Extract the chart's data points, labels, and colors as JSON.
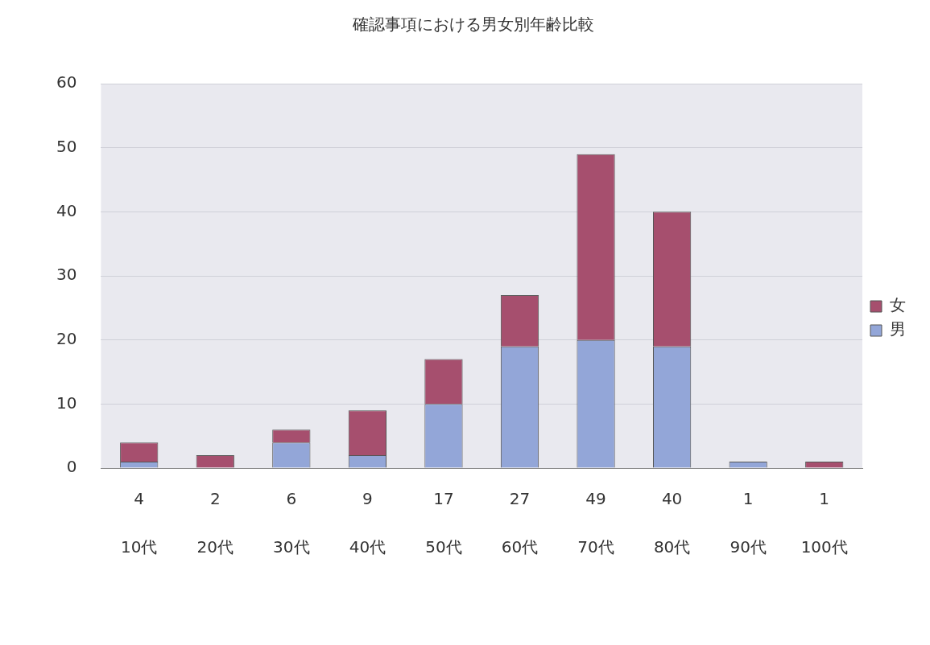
{
  "chart_data": {
    "type": "bar",
    "title": "確認事項における男女別年齢比較",
    "categories": [
      "10代",
      "20代",
      "30代",
      "40代",
      "50代",
      "60代",
      "70代",
      "80代",
      "90代",
      "100代"
    ],
    "stacked": true,
    "series": [
      {
        "name": "男",
        "color": "#93a6d8",
        "values": [
          1,
          0,
          4,
          2,
          10,
          19,
          20,
          19,
          1,
          0
        ]
      },
      {
        "name": "女",
        "color": "#a64f6e",
        "values": [
          3,
          2,
          2,
          7,
          7,
          8,
          29,
          21,
          0,
          1
        ]
      }
    ],
    "totals": [
      "4",
      "2",
      "6",
      "9",
      "17",
      "27",
      "49",
      "40",
      "1",
      "1"
    ],
    "ylim": [
      0,
      60
    ],
    "yticks": [
      0,
      10,
      20,
      30,
      40,
      50,
      60
    ],
    "grid": "y",
    "legend": "right"
  }
}
